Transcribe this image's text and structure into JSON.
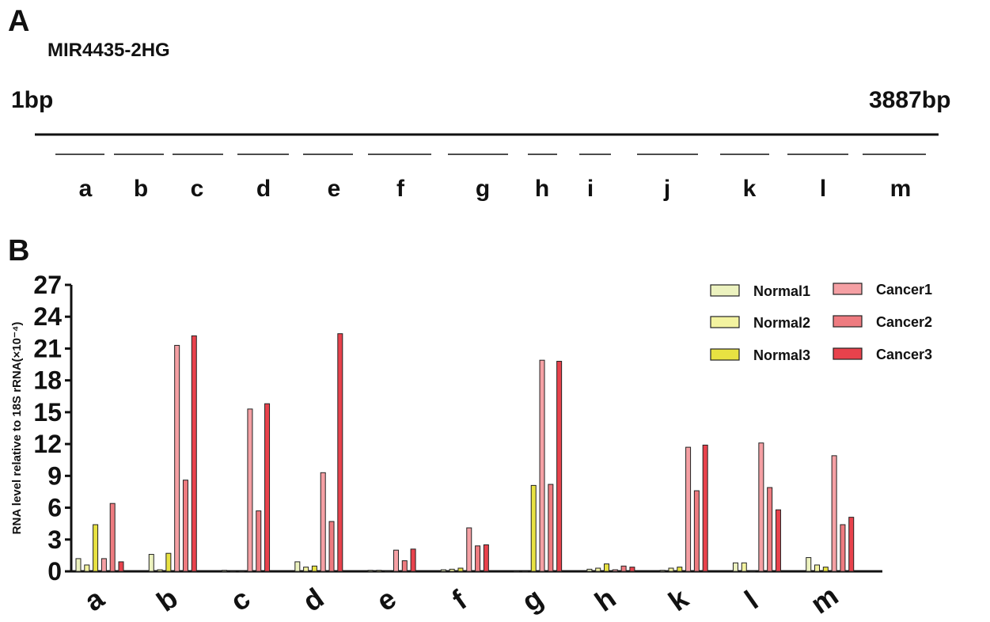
{
  "panel_a": {
    "letter": "A",
    "gene": "MIR4435-2HG",
    "start_label": "1bp",
    "end_label": "3887bp",
    "segments": [
      "a",
      "b",
      "c",
      "d",
      "e",
      "f",
      "g",
      "h",
      "i",
      "j",
      "k",
      "l",
      "m"
    ]
  },
  "panel_b": {
    "letter": "B"
  },
  "chart_data": {
    "type": "bar",
    "ylabel": "RNA level relative to 18S rRNA(×10⁻⁴)",
    "xlabel": "",
    "ylim": [
      0,
      27
    ],
    "yticks": [
      0,
      3,
      6,
      9,
      12,
      15,
      18,
      21,
      24,
      27
    ],
    "categories": [
      "a",
      "b",
      "c",
      "d",
      "e",
      "f",
      "g",
      "h",
      "k",
      "l",
      "m"
    ],
    "legend_position": "top-right",
    "series": [
      {
        "name": "Normal1",
        "color": "#ecf2bf",
        "values": [
          1.2,
          1.6,
          0.1,
          0.9,
          0.1,
          0.15,
          0.0,
          0.2,
          0.1,
          0.8,
          1.3
        ]
      },
      {
        "name": "Normal2",
        "color": "#f3f3a0",
        "values": [
          0.6,
          0.15,
          0.0,
          0.4,
          0.1,
          0.2,
          0.0,
          0.3,
          0.3,
          0.8,
          0.6
        ]
      },
      {
        "name": "Normal3",
        "color": "#e8e242",
        "values": [
          4.4,
          1.7,
          0.0,
          0.5,
          0.0,
          0.3,
          8.1,
          0.7,
          0.4,
          0.0,
          0.4
        ]
      },
      {
        "name": "Cancer1",
        "color": "#f5a0a4",
        "values": [
          1.2,
          21.3,
          15.3,
          9.3,
          2.0,
          4.1,
          19.9,
          0.15,
          11.7,
          12.1,
          10.9
        ]
      },
      {
        "name": "Cancer2",
        "color": "#ee7b80",
        "values": [
          6.4,
          8.6,
          5.7,
          4.7,
          1.0,
          2.4,
          8.2,
          0.5,
          7.6,
          7.9,
          4.4
        ]
      },
      {
        "name": "Cancer3",
        "color": "#e8424c",
        "values": [
          0.9,
          22.2,
          15.8,
          22.4,
          2.1,
          2.5,
          19.8,
          0.4,
          11.9,
          5.8,
          5.1
        ]
      }
    ]
  }
}
